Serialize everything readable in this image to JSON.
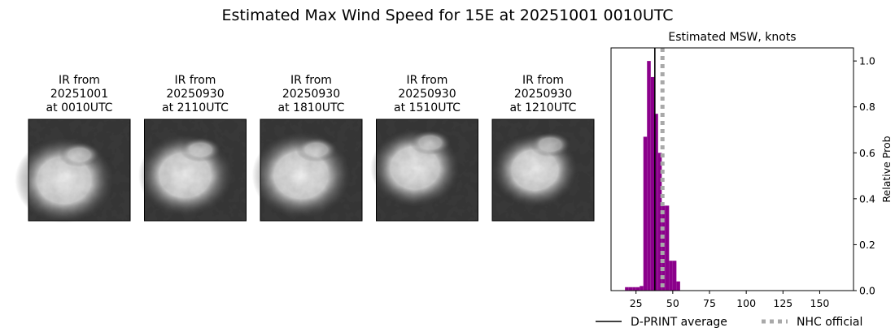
{
  "title": "Estimated Max Wind Speed for 15E at 20251001 0010UTC",
  "images": [
    {
      "caption": [
        "IR from",
        "20251001",
        "at 0010UTC"
      ]
    },
    {
      "caption": [
        "IR from",
        "20250930",
        "at 2110UTC"
      ]
    },
    {
      "caption": [
        "IR from",
        "20250930",
        "at 1810UTC"
      ]
    },
    {
      "caption": [
        "IR from",
        "20250930",
        "at 1510UTC"
      ]
    },
    {
      "caption": [
        "IR from",
        "20250930",
        "at 1210UTC"
      ]
    }
  ],
  "chart_data": {
    "type": "histogram",
    "title": "Estimated MSW, knots",
    "y_label": "Relative Prob",
    "bins": [
      17.5,
      20,
      22.5,
      25,
      27.5,
      30,
      32.5,
      35,
      37.5,
      40,
      42.5,
      45,
      47.5,
      50,
      52.5,
      55
    ],
    "values": [
      0.015,
      0.015,
      0.015,
      0.015,
      0.02,
      0.67,
      1.0,
      0.93,
      0.77,
      0.6,
      0.37,
      0.37,
      0.13,
      0.13,
      0.04
    ],
    "color": "#8b008b",
    "xlim": [
      8,
      173
    ],
    "ylim": [
      0,
      1.057
    ],
    "xticks": [
      25,
      50,
      75,
      100,
      125,
      150
    ],
    "yticks": [
      {
        "value": 0,
        "label": "0.0"
      },
      {
        "value": 0.2,
        "label": "0.2"
      },
      {
        "value": 0.4,
        "label": "0.4"
      },
      {
        "value": 0.6,
        "label": "0.6"
      },
      {
        "value": 0.8,
        "label": "0.8"
      },
      {
        "value": 1.0,
        "label": "1.0"
      }
    ],
    "y_axis_side": "right",
    "lines": [
      {
        "name": "D-PRINT average",
        "value": 37.8,
        "color": "#000000",
        "style": "solid"
      },
      {
        "name": "NHC official",
        "value": 43,
        "color": "#a9a9a9",
        "style": "dotted"
      }
    ],
    "legend": "bottom"
  }
}
